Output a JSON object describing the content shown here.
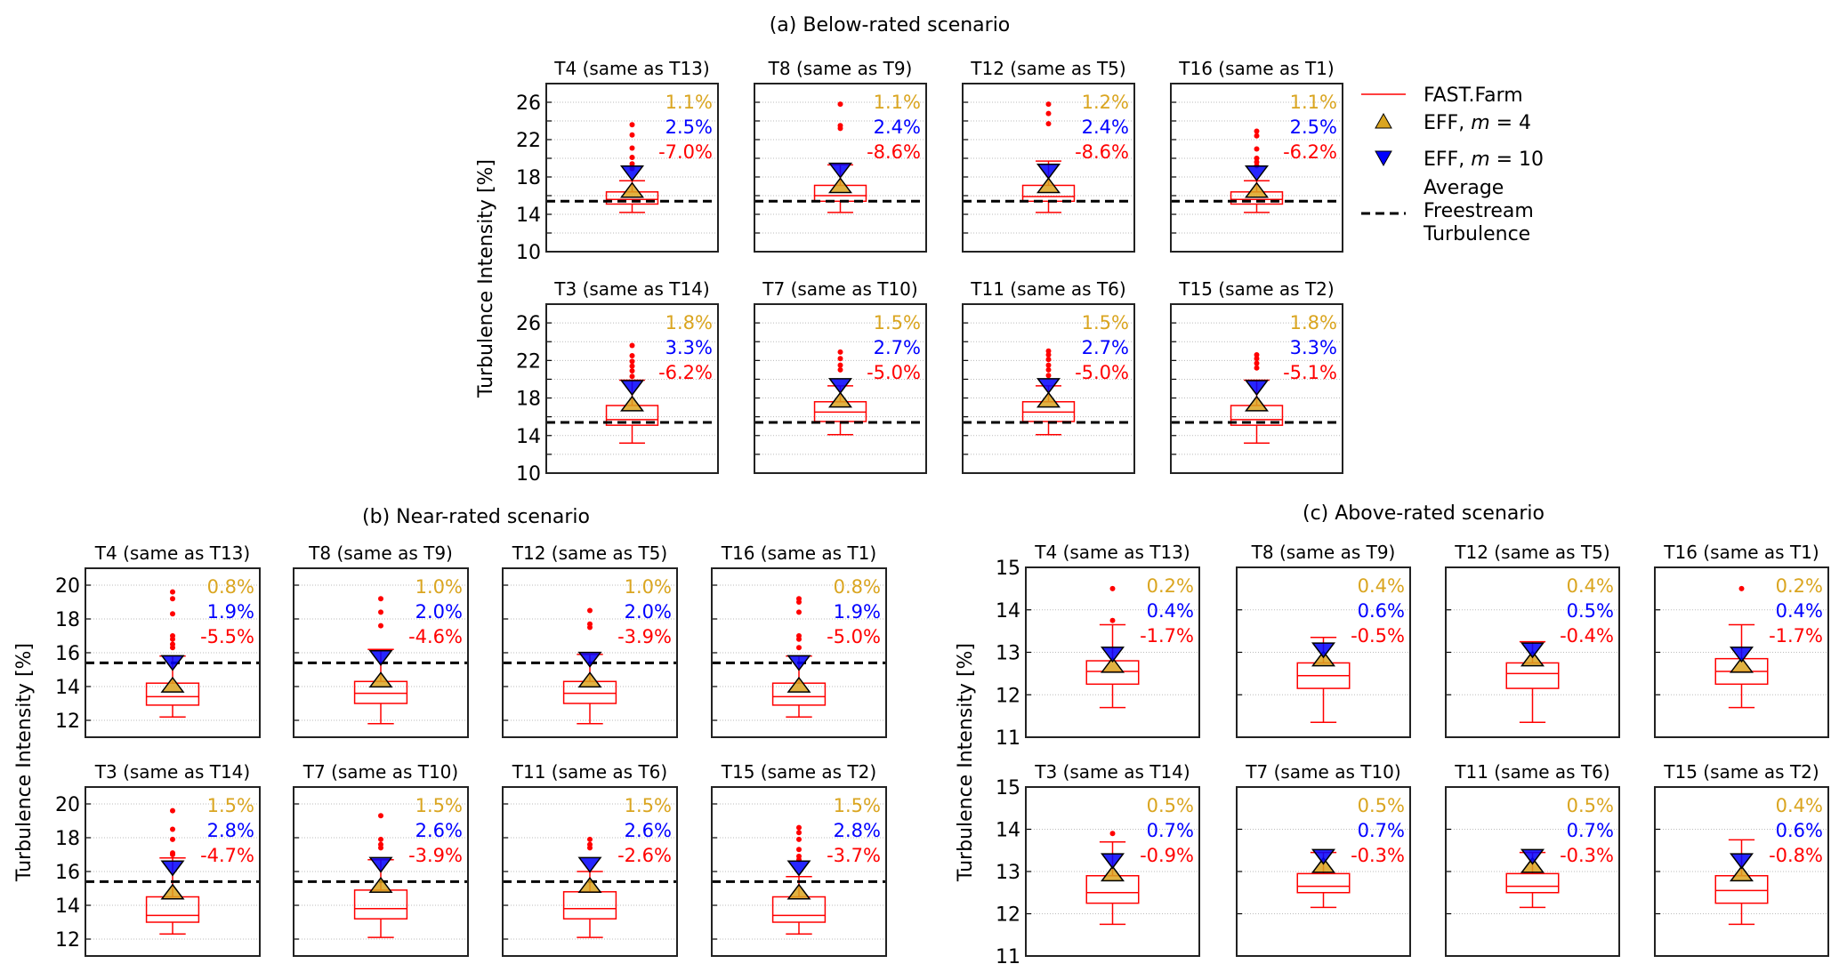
{
  "colors": {
    "fastfarm": "#ff0000",
    "eff_m4": "#daa520",
    "eff_m10": "#0000ff",
    "freestream": "#000000",
    "grid": "#bbbbbb",
    "text": "#000000"
  },
  "legend": {
    "placement": "right of panel (a)",
    "items": [
      {
        "key": "fastfarm",
        "label": "FAST.Farm",
        "symbol": "line"
      },
      {
        "key": "eff_m4",
        "label": "EFF, m = 4",
        "symbol": "triangle-up"
      },
      {
        "key": "eff_m10",
        "label": "EFF, m = 10",
        "symbol": "triangle-down"
      },
      {
        "key": "freestream",
        "label_lines": [
          "Average",
          "Freestream",
          "Turbulence"
        ],
        "symbol": "dashed-line"
      }
    ]
  },
  "chart_data": [
    {
      "type": "box",
      "id": "a",
      "title": "(a) Below-rated scenario",
      "ylabel": "Turbulence Intensity [%]",
      "ylim": [
        10,
        28
      ],
      "yticks_labeled": [
        10,
        14,
        18,
        22,
        26
      ],
      "ygrid": [
        12,
        14,
        16,
        18,
        20,
        22,
        24,
        26
      ],
      "grid": true,
      "freestream": 15.4,
      "subplots": [
        {
          "title": "T4 (same as T13)",
          "box": {
            "whislo": 14.2,
            "q1": 15.1,
            "med": 15.6,
            "q3": 16.4,
            "whishi": 17.6
          },
          "fliers": [
            18.9,
            19.4,
            20.1,
            21.1,
            22.5,
            23.6
          ],
          "eff_m4": 16.6,
          "eff_m10": 18.4,
          "annot": [
            "1.1%",
            "2.5%",
            "-7.0%"
          ]
        },
        {
          "title": "T8 (same as T9)",
          "box": {
            "whislo": 14.2,
            "q1": 15.4,
            "med": 16.0,
            "q3": 17.1,
            "whishi": 19.3
          },
          "fliers": [
            23.2,
            23.5,
            25.8
          ],
          "eff_m4": 17.1,
          "eff_m10": 18.7,
          "annot": [
            "1.1%",
            "2.4%",
            "-8.6%"
          ]
        },
        {
          "title": "T12 (same as T5)",
          "box": {
            "whislo": 14.2,
            "q1": 15.4,
            "med": 15.9,
            "q3": 17.1,
            "whishi": 19.7
          },
          "fliers": [
            23.7,
            24.8,
            25.8
          ],
          "eff_m4": 17.1,
          "eff_m10": 18.6,
          "annot": [
            "1.2%",
            "2.4%",
            "-8.6%"
          ]
        },
        {
          "title": "T16 (same as T1)",
          "box": {
            "whislo": 14.2,
            "q1": 15.1,
            "med": 15.6,
            "q3": 16.4,
            "whishi": 17.6
          },
          "fliers": [
            19.2,
            19.6,
            20.0,
            21.0,
            22.4,
            22.9
          ],
          "eff_m4": 16.6,
          "eff_m10": 18.4,
          "annot": [
            "1.1%",
            "2.5%",
            "-6.2%"
          ]
        },
        {
          "title": "T3 (same as T14)",
          "box": {
            "whislo": 13.2,
            "q1": 15.1,
            "med": 15.7,
            "q3": 17.2,
            "whishi": 19.9
          },
          "fliers": [
            20.3,
            20.9,
            21.4,
            21.9,
            22.5,
            23.6
          ],
          "eff_m4": 17.4,
          "eff_m10": 19.1,
          "annot": [
            "1.8%",
            "3.3%",
            "-6.2%"
          ]
        },
        {
          "title": "T7 (same as T10)",
          "box": {
            "whislo": 14.1,
            "q1": 15.5,
            "med": 16.5,
            "q3": 17.6,
            "whishi": 19.3
          },
          "fliers": [
            21.0,
            21.5,
            22.2,
            22.9
          ],
          "eff_m4": 17.8,
          "eff_m10": 19.3,
          "annot": [
            "1.5%",
            "2.7%",
            "-5.0%"
          ]
        },
        {
          "title": "T11 (same as T6)",
          "box": {
            "whislo": 14.1,
            "q1": 15.5,
            "med": 16.5,
            "q3": 17.6,
            "whishi": 19.3
          },
          "fliers": [
            20.4,
            21.0,
            21.5,
            22.1,
            22.6,
            23.0
          ],
          "eff_m4": 17.8,
          "eff_m10": 19.3,
          "annot": [
            "1.5%",
            "2.7%",
            "-5.0%"
          ]
        },
        {
          "title": "T15 (same as T2)",
          "box": {
            "whislo": 13.2,
            "q1": 15.1,
            "med": 15.7,
            "q3": 17.2,
            "whishi": 19.9
          },
          "fliers": [
            21.2,
            21.7,
            22.2,
            22.6
          ],
          "eff_m4": 17.4,
          "eff_m10": 19.1,
          "annot": [
            "1.8%",
            "3.3%",
            "-5.1%"
          ]
        }
      ]
    },
    {
      "type": "box",
      "id": "b",
      "title": "(b) Near-rated scenario",
      "ylabel": "Turbulence Intensity [%]",
      "ylim": [
        11,
        21
      ],
      "yticks_labeled": [
        12,
        14,
        16,
        18,
        20
      ],
      "ygrid": [
        12,
        14,
        16,
        18,
        20
      ],
      "grid": true,
      "freestream": 15.4,
      "subplots": [
        {
          "title": "T4 (same as T13)",
          "box": {
            "whislo": 12.2,
            "q1": 12.9,
            "med": 13.4,
            "q3": 14.2,
            "whishi": 15.8
          },
          "fliers": [
            16.3,
            16.5,
            16.8,
            17.0,
            18.3,
            19.2,
            19.6
          ],
          "eff_m4": 14.1,
          "eff_m10": 15.4,
          "annot": [
            "0.8%",
            "1.9%",
            "-5.5%"
          ]
        },
        {
          "title": "T8 (same as T9)",
          "box": {
            "whislo": 11.8,
            "q1": 13.0,
            "med": 13.6,
            "q3": 14.3,
            "whishi": 16.2
          },
          "fliers": [
            17.6,
            18.4,
            19.2
          ],
          "eff_m4": 14.4,
          "eff_m10": 15.7,
          "annot": [
            "1.0%",
            "2.0%",
            "-4.6%"
          ]
        },
        {
          "title": "T12 (same as T5)",
          "box": {
            "whislo": 11.8,
            "q1": 13.0,
            "med": 13.6,
            "q3": 14.3,
            "whishi": 15.9
          },
          "fliers": [
            17.5,
            17.7,
            18.5
          ],
          "eff_m4": 14.4,
          "eff_m10": 15.6,
          "annot": [
            "1.0%",
            "2.0%",
            "-3.9%"
          ]
        },
        {
          "title": "T16 (same as T1)",
          "box": {
            "whislo": 12.2,
            "q1": 12.9,
            "med": 13.4,
            "q3": 14.2,
            "whishi": 15.8
          },
          "fliers": [
            16.3,
            16.8,
            17.0,
            18.4,
            19.0,
            19.2
          ],
          "eff_m4": 14.1,
          "eff_m10": 15.4,
          "annot": [
            "0.8%",
            "1.9%",
            "-5.0%"
          ]
        },
        {
          "title": "T3 (same as T14)",
          "box": {
            "whislo": 12.3,
            "q1": 13.0,
            "med": 13.4,
            "q3": 14.5,
            "whishi": 16.8
          },
          "fliers": [
            17.0,
            17.1,
            17.9,
            18.5,
            19.6
          ],
          "eff_m4": 14.8,
          "eff_m10": 16.2,
          "annot": [
            "1.5%",
            "2.8%",
            "-4.7%"
          ]
        },
        {
          "title": "T7 (same as T10)",
          "box": {
            "whislo": 12.1,
            "q1": 13.2,
            "med": 13.8,
            "q3": 14.9,
            "whishi": 16.7
          },
          "fliers": [
            17.4,
            17.6,
            17.9,
            19.3
          ],
          "eff_m4": 15.2,
          "eff_m10": 16.4,
          "annot": [
            "1.5%",
            "2.6%",
            "-3.9%"
          ]
        },
        {
          "title": "T11 (same as T6)",
          "box": {
            "whislo": 12.1,
            "q1": 13.2,
            "med": 13.8,
            "q3": 14.8,
            "whishi": 16.0
          },
          "fliers": [
            17.4,
            17.6,
            17.9
          ],
          "eff_m4": 15.2,
          "eff_m10": 16.4,
          "annot": [
            "1.5%",
            "2.6%",
            "-2.6%"
          ]
        },
        {
          "title": "T15 (same as T2)",
          "box": {
            "whislo": 12.3,
            "q1": 13.0,
            "med": 13.4,
            "q3": 14.5,
            "whishi": 15.7
          },
          "fliers": [
            16.7,
            16.9,
            17.3,
            17.9,
            18.3,
            18.6
          ],
          "eff_m4": 14.8,
          "eff_m10": 16.2,
          "annot": [
            "1.5%",
            "2.8%",
            "-3.7%"
          ]
        }
      ]
    },
    {
      "type": "box",
      "id": "c",
      "title": "(c) Above-rated scenario",
      "ylabel": "Turbulence Intensity [%]",
      "ylim": [
        11,
        15
      ],
      "yticks_labeled": [
        11,
        12,
        13,
        14,
        15
      ],
      "ygrid": [
        12,
        13,
        14
      ],
      "grid": true,
      "freestream": null,
      "subplots": [
        {
          "title": "T4 (same as T13)",
          "box": {
            "whislo": 11.7,
            "q1": 12.25,
            "med": 12.55,
            "q3": 12.8,
            "whishi": 13.65
          },
          "fliers": [
            13.75,
            14.5
          ],
          "eff_m4": 12.7,
          "eff_m10": 12.95,
          "annot": [
            "0.2%",
            "0.4%",
            "-1.7%"
          ]
        },
        {
          "title": "T8 (same as T9)",
          "box": {
            "whislo": 11.35,
            "q1": 12.15,
            "med": 12.45,
            "q3": 12.75,
            "whishi": 13.35
          },
          "fliers": [],
          "eff_m4": 12.85,
          "eff_m10": 13.05,
          "annot": [
            "0.4%",
            "0.6%",
            "-0.5%"
          ]
        },
        {
          "title": "T12 (same as T5)",
          "box": {
            "whislo": 11.35,
            "q1": 12.15,
            "med": 12.5,
            "q3": 12.75,
            "whishi": 13.25
          },
          "fliers": [],
          "eff_m4": 12.85,
          "eff_m10": 13.05,
          "annot": [
            "0.4%",
            "0.5%",
            "-0.4%"
          ]
        },
        {
          "title": "T16 (same as T1)",
          "box": {
            "whislo": 11.7,
            "q1": 12.25,
            "med": 12.55,
            "q3": 12.85,
            "whishi": 13.65
          },
          "fliers": [
            14.5
          ],
          "eff_m4": 12.7,
          "eff_m10": 12.95,
          "annot": [
            "0.2%",
            "0.4%",
            "-1.7%"
          ]
        },
        {
          "title": "T3 (same as T14)",
          "box": {
            "whislo": 11.75,
            "q1": 12.25,
            "med": 12.5,
            "q3": 12.9,
            "whishi": 13.7
          },
          "fliers": [
            13.9
          ],
          "eff_m4": 12.95,
          "eff_m10": 13.25,
          "annot": [
            "0.5%",
            "0.7%",
            "-0.9%"
          ]
        },
        {
          "title": "T7 (same as T10)",
          "box": {
            "whislo": 12.15,
            "q1": 12.5,
            "med": 12.65,
            "q3": 12.95,
            "whishi": 13.45
          },
          "fliers": [],
          "eff_m4": 13.15,
          "eff_m10": 13.35,
          "annot": [
            "0.5%",
            "0.7%",
            "-0.3%"
          ]
        },
        {
          "title": "T11 (same as T6)",
          "box": {
            "whislo": 12.15,
            "q1": 12.5,
            "med": 12.65,
            "q3": 12.95,
            "whishi": 13.45
          },
          "fliers": [],
          "eff_m4": 13.15,
          "eff_m10": 13.35,
          "annot": [
            "0.5%",
            "0.7%",
            "-0.3%"
          ]
        },
        {
          "title": "T15 (same as T2)",
          "box": {
            "whislo": 11.75,
            "q1": 12.25,
            "med": 12.55,
            "q3": 12.9,
            "whishi": 13.75
          },
          "fliers": [],
          "eff_m4": 12.95,
          "eff_m10": 13.25,
          "annot": [
            "0.4%",
            "0.6%",
            "-0.8%"
          ]
        }
      ]
    }
  ]
}
